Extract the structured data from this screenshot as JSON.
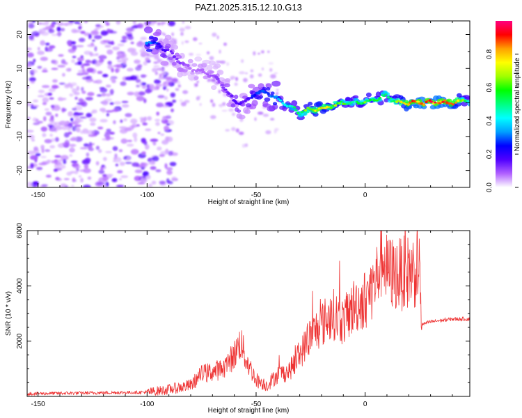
{
  "page_title": "PAZ1.2025.315.12.10.G13",
  "chart_data": [
    {
      "type": "heatmap",
      "title": "PAZ1.2025.315.12.10.G13",
      "xlabel": "Height of straight line (km)",
      "ylabel": "Frequency (Hz)",
      "xlim": [
        -155,
        48
      ],
      "ylim": [
        -25,
        24
      ],
      "xticks": [
        -150,
        -100,
        -50,
        0
      ],
      "yticks": [
        -20,
        -10,
        0,
        10,
        20
      ],
      "ridge": {
        "x": [
          -100,
          -95,
          -90,
          -85,
          -80,
          -75,
          -70,
          -65,
          -60,
          -55,
          -50,
          -45,
          -40,
          -35,
          -30,
          -25,
          -20,
          -15,
          -10,
          -5,
          0,
          5,
          10,
          15,
          20,
          25,
          30,
          35,
          40,
          45,
          48
        ],
        "freq": [
          18,
          17,
          15,
          12,
          10,
          9,
          8,
          5,
          0,
          0,
          3,
          3,
          1,
          -1,
          -3,
          -2,
          -2,
          -1,
          0,
          0,
          0,
          1,
          2,
          0,
          0,
          0,
          0,
          0,
          0,
          0.5,
          0.5
        ],
        "amplitude": [
          0.35,
          0.25,
          0.15,
          0.12,
          0.08,
          0.08,
          0.1,
          0.12,
          0.18,
          0.15,
          0.28,
          0.3,
          0.38,
          0.45,
          0.55,
          0.7,
          0.75,
          0.68,
          0.6,
          0.5,
          0.6,
          0.55,
          0.55,
          0.65,
          0.85,
          0.88,
          0.9,
          0.88,
          0.85,
          0.6,
          0.45
        ]
      },
      "noise_region_x": [
        -155,
        -95
      ]
    },
    {
      "type": "colorbar",
      "label": "Normalized spectral amplitude",
      "range": [
        0,
        1
      ],
      "ticks": [
        "0.0",
        "0.2",
        "0.4",
        "0.6",
        "0.8"
      ],
      "colors": [
        "#ffffff",
        "#b060ff",
        "#5000ff",
        "#0000ff",
        "#00a0ff",
        "#00ffff",
        "#00ff80",
        "#00ff00",
        "#a0ff00",
        "#ffff00",
        "#ffa000",
        "#ff0000",
        "#ff0080"
      ]
    },
    {
      "type": "line",
      "xlabel": "Height of straight line (km)",
      "ylabel": "SNR (10 * v/v)",
      "xlim": [
        -155,
        48
      ],
      "ylim": [
        0,
        6000
      ],
      "xticks": [
        -150,
        -100,
        -50,
        0
      ],
      "yticks": [
        2000,
        4000,
        6000
      ],
      "series": [
        {
          "name": "SNR",
          "color": "#ee3333",
          "x": [
            -155,
            -100,
            -90,
            -80,
            -75,
            -70,
            -65,
            -60,
            -57,
            -55,
            -50,
            -45,
            -40,
            -35,
            -30,
            -25,
            -20,
            -15,
            -10,
            -5,
            0,
            5,
            8,
            10,
            15,
            20,
            25,
            26,
            30,
            35,
            40,
            45,
            48
          ],
          "y": [
            100,
            150,
            250,
            400,
            800,
            900,
            1000,
            1500,
            2000,
            1400,
            600,
            400,
            800,
            900,
            1500,
            2200,
            2600,
            3000,
            2700,
            3300,
            3500,
            4200,
            5200,
            4500,
            4400,
            4500,
            4600,
            2600,
            2700,
            2750,
            2800,
            2800,
            2800
          ]
        }
      ]
    }
  ]
}
